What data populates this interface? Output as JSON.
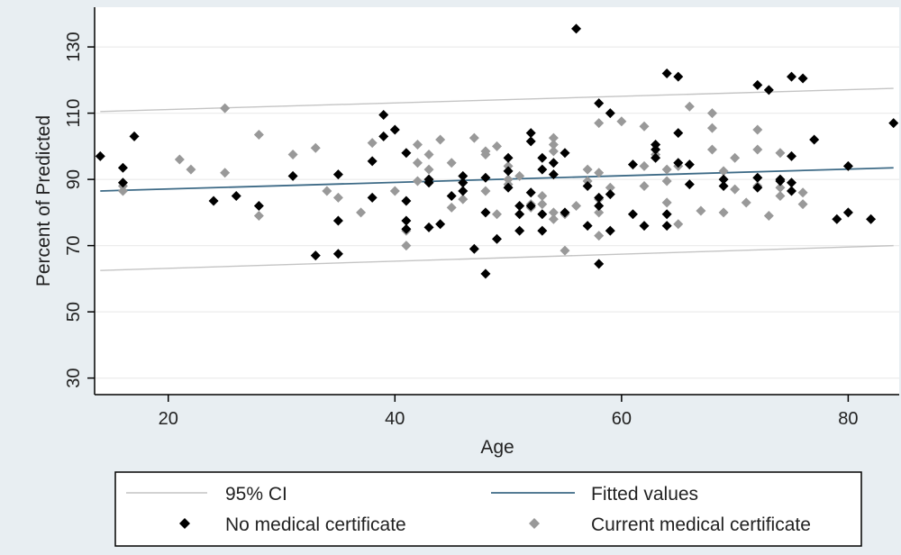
{
  "chart_data": {
    "type": "scatter",
    "xlabel": "Age",
    "ylabel": "Percent of Predicted",
    "xlim": [
      13.5,
      84.5
    ],
    "ylim": [
      25,
      142
    ],
    "xticks": [
      20,
      40,
      60,
      80
    ],
    "yticks": [
      30,
      50,
      70,
      90,
      110,
      130
    ],
    "grid": "horizontal",
    "legend_position": "bottom",
    "colors": {
      "background": "#e8eef2",
      "plot_area": "#ffffff",
      "no_certificate": "#000000",
      "current_certificate": "#999999",
      "fitted": "#3d6a86",
      "ci": "#c4c4c4"
    },
    "series": [
      {
        "name": "No medical certificate",
        "marker": "diamond",
        "points": [
          [
            14,
            97
          ],
          [
            16,
            93.5
          ],
          [
            16,
            89
          ],
          [
            17,
            103
          ],
          [
            24,
            83.5
          ],
          [
            26,
            85
          ],
          [
            28,
            82
          ],
          [
            31,
            91
          ],
          [
            33,
            67
          ],
          [
            35,
            67.5
          ],
          [
            35,
            91.5
          ],
          [
            35,
            77.5
          ],
          [
            38,
            84.5
          ],
          [
            38,
            95.5
          ],
          [
            39,
            103
          ],
          [
            39,
            109.5
          ],
          [
            40,
            105
          ],
          [
            41,
            98
          ],
          [
            41,
            83.5
          ],
          [
            41,
            77.5
          ],
          [
            41,
            75
          ],
          [
            43,
            75.5
          ],
          [
            43,
            89
          ],
          [
            43,
            90
          ],
          [
            44,
            76.5
          ],
          [
            45,
            85
          ],
          [
            46,
            89
          ],
          [
            46,
            86.5
          ],
          [
            46,
            91
          ],
          [
            47,
            69
          ],
          [
            48,
            61.5
          ],
          [
            48,
            90.5
          ],
          [
            48,
            80
          ],
          [
            49,
            72
          ],
          [
            50,
            92.5
          ],
          [
            50,
            96.5
          ],
          [
            50,
            87.5
          ],
          [
            51,
            74.5
          ],
          [
            51,
            79.5
          ],
          [
            51,
            82
          ],
          [
            52,
            101.5
          ],
          [
            52,
            104
          ],
          [
            52,
            86
          ],
          [
            52,
            82
          ],
          [
            53,
            79.5
          ],
          [
            53,
            74.5
          ],
          [
            53,
            93
          ],
          [
            53,
            96.5
          ],
          [
            54,
            91.5
          ],
          [
            54,
            95
          ],
          [
            55,
            80
          ],
          [
            55,
            98
          ],
          [
            56,
            135.5
          ],
          [
            57,
            76
          ],
          [
            57,
            88
          ],
          [
            58,
            113
          ],
          [
            58,
            64.5
          ],
          [
            58,
            84.5
          ],
          [
            58,
            82
          ],
          [
            59,
            110
          ],
          [
            59,
            85.5
          ],
          [
            59,
            74.5
          ],
          [
            61,
            79.5
          ],
          [
            61,
            94.5
          ],
          [
            62,
            76
          ],
          [
            63,
            96.5
          ],
          [
            63,
            99
          ],
          [
            63,
            100.5
          ],
          [
            64,
            122
          ],
          [
            64,
            79.5
          ],
          [
            64,
            76
          ],
          [
            65,
            121
          ],
          [
            65,
            104
          ],
          [
            65,
            95
          ],
          [
            66,
            94.5
          ],
          [
            66,
            88.5
          ],
          [
            69,
            88
          ],
          [
            69,
            90
          ],
          [
            72,
            118.5
          ],
          [
            72,
            90.5
          ],
          [
            72,
            87.5
          ],
          [
            73,
            117
          ],
          [
            74,
            89.5
          ],
          [
            74,
            90
          ],
          [
            75,
            121
          ],
          [
            75,
            97
          ],
          [
            75,
            86.5
          ],
          [
            75,
            89
          ],
          [
            76,
            120.5
          ],
          [
            77,
            102
          ],
          [
            79,
            78
          ],
          [
            80,
            80
          ],
          [
            80,
            94
          ],
          [
            82,
            78
          ],
          [
            84,
            107
          ]
        ]
      },
      {
        "name": "Current medical certificate",
        "marker": "diamond",
        "points": [
          [
            16,
            86.5
          ],
          [
            16,
            88
          ],
          [
            21,
            96
          ],
          [
            22,
            93
          ],
          [
            25,
            111.5
          ],
          [
            25,
            92
          ],
          [
            28,
            103.5
          ],
          [
            28,
            79
          ],
          [
            31,
            97.5
          ],
          [
            33,
            99.5
          ],
          [
            34,
            86.5
          ],
          [
            35,
            84.5
          ],
          [
            37,
            80
          ],
          [
            38,
            101
          ],
          [
            40,
            86.5
          ],
          [
            41,
            74.5
          ],
          [
            41,
            70
          ],
          [
            42,
            100.5
          ],
          [
            42,
            95
          ],
          [
            42,
            89.5
          ],
          [
            43,
            93
          ],
          [
            43,
            97.5
          ],
          [
            44,
            102
          ],
          [
            45,
            95
          ],
          [
            45,
            81.5
          ],
          [
            46,
            84
          ],
          [
            47,
            102.5
          ],
          [
            48,
            97.5
          ],
          [
            48,
            98.5
          ],
          [
            48,
            86.5
          ],
          [
            49,
            100
          ],
          [
            49,
            79.5
          ],
          [
            50,
            94
          ],
          [
            50,
            88.5
          ],
          [
            50,
            90
          ],
          [
            51,
            91
          ],
          [
            52,
            82.5
          ],
          [
            52,
            81.5
          ],
          [
            53,
            82.5
          ],
          [
            53,
            85
          ],
          [
            54,
            102.5
          ],
          [
            54,
            100.5
          ],
          [
            54,
            98.5
          ],
          [
            54,
            78
          ],
          [
            54,
            80
          ],
          [
            55,
            68.5
          ],
          [
            55,
            79.5
          ],
          [
            56,
            82
          ],
          [
            57,
            93
          ],
          [
            57,
            89.5
          ],
          [
            58,
            107
          ],
          [
            58,
            92
          ],
          [
            58,
            84
          ],
          [
            58,
            80
          ],
          [
            58,
            73
          ],
          [
            59,
            87.5
          ],
          [
            60,
            107.5
          ],
          [
            62,
            106
          ],
          [
            62,
            94
          ],
          [
            62,
            88
          ],
          [
            63,
            97.5
          ],
          [
            64,
            83
          ],
          [
            64,
            93
          ],
          [
            64,
            89.5
          ],
          [
            65,
            94
          ],
          [
            65,
            76.5
          ],
          [
            66,
            112
          ],
          [
            67,
            80.5
          ],
          [
            68,
            110
          ],
          [
            68,
            105.5
          ],
          [
            68,
            99
          ],
          [
            69,
            92.5
          ],
          [
            69,
            80
          ],
          [
            70,
            96.5
          ],
          [
            70,
            87
          ],
          [
            71,
            83
          ],
          [
            72,
            105
          ],
          [
            72,
            99
          ],
          [
            72,
            88
          ],
          [
            73,
            79
          ],
          [
            74,
            98
          ],
          [
            74,
            87.5
          ],
          [
            74,
            85
          ],
          [
            76,
            86
          ],
          [
            76,
            82.5
          ]
        ]
      }
    ],
    "fitted_values": {
      "name": "Fitted values",
      "x": [
        14,
        84
      ],
      "y": [
        86.5,
        93.5
      ]
    },
    "confidence_interval": {
      "name": "95% CI",
      "x": [
        14,
        84
      ],
      "upper": [
        110.5,
        117.5
      ],
      "lower": [
        62.5,
        70
      ]
    }
  }
}
